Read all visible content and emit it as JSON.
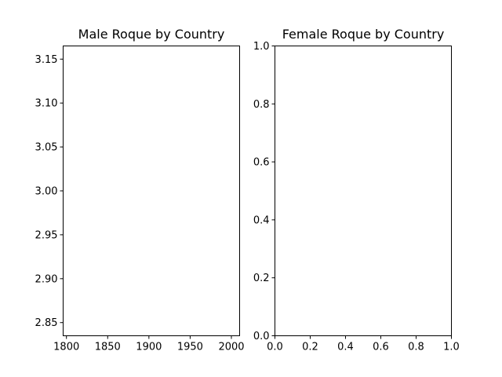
{
  "chart_data": [
    {
      "type": "line",
      "title": "Male Roque by Country",
      "xlabel": "",
      "ylabel": "",
      "xlim": [
        1796,
        2010
      ],
      "ylim": [
        2.835,
        3.165
      ],
      "xticks": [
        1800,
        1850,
        1900,
        1950,
        2000
      ],
      "yticks": [
        2.85,
        2.9,
        2.95,
        3.0,
        3.05,
        3.1,
        3.15
      ],
      "xtick_labels": [
        "1800",
        "1850",
        "1900",
        "1950",
        "2000"
      ],
      "ytick_labels": [
        "2.85",
        "2.90",
        "2.95",
        "3.00",
        "3.05",
        "3.10",
        "3.15"
      ],
      "series": [],
      "grid": false
    },
    {
      "type": "line",
      "title": "Female Roque by Country",
      "xlabel": "",
      "ylabel": "",
      "xlim": [
        0,
        1
      ],
      "ylim": [
        0,
        1
      ],
      "xticks": [
        0,
        0.2,
        0.4,
        0.6,
        0.8,
        1.0
      ],
      "yticks": [
        0,
        0.2,
        0.4,
        0.6,
        0.8,
        1.0
      ],
      "xtick_labels": [
        "0.0",
        "0.2",
        "0.4",
        "0.6",
        "0.8",
        "1.0"
      ],
      "ytick_labels": [
        "0.0",
        "0.2",
        "0.4",
        "0.6",
        "0.8",
        "1.0"
      ],
      "series": [],
      "grid": false
    }
  ]
}
